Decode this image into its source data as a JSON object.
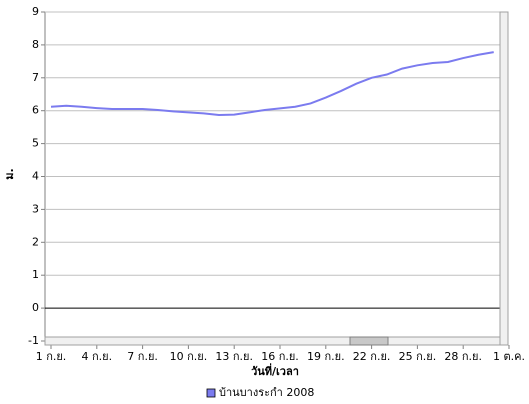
{
  "chart_data": {
    "type": "line",
    "y_label": "ม.",
    "x_label": "วันที่/เวลา",
    "x": [
      0,
      1,
      2,
      3,
      4,
      5,
      6,
      7,
      8,
      9,
      10,
      11,
      12,
      13,
      14,
      15,
      16,
      17,
      18,
      19,
      20,
      21,
      22,
      23,
      24,
      25,
      26,
      27,
      28,
      29
    ],
    "series": [
      {
        "name": "บ้านบางระกำ 2008",
        "color": "#7b7bef",
        "values": [
          6.12,
          6.15,
          6.12,
          6.08,
          6.05,
          6.05,
          6.05,
          6.02,
          5.98,
          5.95,
          5.92,
          5.87,
          5.88,
          5.95,
          6.02,
          6.07,
          6.12,
          6.22,
          6.4,
          6.6,
          6.82,
          7.0,
          7.1,
          7.28,
          7.38,
          7.45,
          7.48,
          7.6,
          7.7,
          7.78
        ]
      }
    ],
    "xlim": [
      0,
      30
    ],
    "xticks": [
      {
        "value": 0,
        "label": "1 ก.ย."
      },
      {
        "value": 3,
        "label": "4 ก.ย."
      },
      {
        "value": 6,
        "label": "7 ก.ย."
      },
      {
        "value": 9,
        "label": "10 ก.ย."
      },
      {
        "value": 12,
        "label": "13 ก.ย."
      },
      {
        "value": 15,
        "label": "16 ก.ย."
      },
      {
        "value": 18,
        "label": "19 ก.ย."
      },
      {
        "value": 21,
        "label": "22 ก.ย."
      },
      {
        "value": 24,
        "label": "25 ก.ย."
      },
      {
        "value": 27,
        "label": "28 ก.ย."
      },
      {
        "value": 30,
        "label": "1 ต.ค."
      }
    ],
    "ylim": [
      -1,
      9
    ],
    "yticks": [
      -1,
      0,
      1,
      2,
      3,
      4,
      5,
      6,
      7,
      8,
      9
    ],
    "grid": true
  }
}
